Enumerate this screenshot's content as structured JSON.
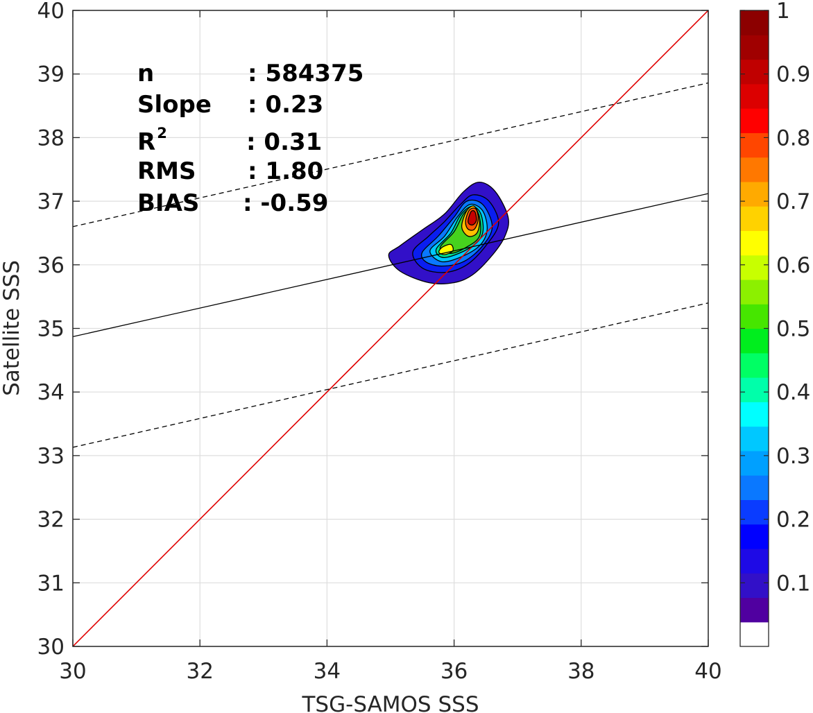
{
  "chart_data": {
    "type": "contour",
    "xlabel": "TSG-SAMOS SSS",
    "ylabel": "Satellite SSS",
    "xlim": [
      30,
      40
    ],
    "ylim": [
      30,
      40
    ],
    "xticks": [
      "30",
      "32",
      "34",
      "36",
      "38",
      "40"
    ],
    "yticks": [
      "30",
      "31",
      "32",
      "33",
      "34",
      "35",
      "36",
      "37",
      "38",
      "39",
      "40"
    ],
    "grid": true,
    "stats": {
      "n_label": "n",
      "n_value": ": 584375",
      "slope_label": "Slope",
      "slope_value": ": 0.23",
      "r2_label": "R",
      "r2_sup": "2",
      "r2_value": ": 0.31",
      "rms_label": "RMS",
      "rms_value": ": 1.80",
      "bias_label": "BIAS",
      "bias_value": ": -0.59"
    },
    "lines": [
      {
        "role": "one-to-one",
        "color": "#e00000",
        "style": "solid",
        "x": [
          30,
          40
        ],
        "y": [
          30,
          40
        ]
      },
      {
        "role": "regression",
        "color": "#000000",
        "style": "solid",
        "x": [
          30,
          40
        ],
        "y": [
          34.87,
          37.12
        ]
      },
      {
        "role": "upper-bound",
        "color": "#000000",
        "style": "dashed",
        "x": [
          30,
          40
        ],
        "y": [
          36.6,
          38.86
        ]
      },
      {
        "role": "lower-bound",
        "color": "#000000",
        "style": "dashed",
        "x": [
          30,
          40
        ],
        "y": [
          33.13,
          35.4
        ]
      }
    ],
    "density": {
      "peak_x": 36.3,
      "peak_y": 36.75,
      "secondary_peak_x": 35.88,
      "secondary_peak_y": 36.23,
      "contours": [
        {
          "level": 0.05,
          "color": "#3210c8",
          "points": [
            [
              34.97,
              36.15
            ],
            [
              35.15,
              36.3
            ],
            [
              35.5,
              36.55
            ],
            [
              35.85,
              36.8
            ],
            [
              36.15,
              37.15
            ],
            [
              36.4,
              37.3
            ],
            [
              36.65,
              37.15
            ],
            [
              36.85,
              36.75
            ],
            [
              36.8,
              36.45
            ],
            [
              36.6,
              36.15
            ],
            [
              36.3,
              35.85
            ],
            [
              36.0,
              35.72
            ],
            [
              35.6,
              35.72
            ],
            [
              35.15,
              35.9
            ]
          ]
        },
        {
          "level": 0.15,
          "color": "#0a1ef0",
          "points": [
            [
              35.35,
              36.2
            ],
            [
              35.6,
              36.45
            ],
            [
              35.85,
              36.68
            ],
            [
              36.1,
              36.95
            ],
            [
              36.3,
              37.1
            ],
            [
              36.55,
              37.0
            ],
            [
              36.7,
              36.65
            ],
            [
              36.5,
              36.3
            ],
            [
              36.2,
              36.0
            ],
            [
              35.85,
              35.88
            ],
            [
              35.5,
              35.95
            ]
          ]
        },
        {
          "level": 0.25,
          "color": "#0a78ff",
          "points": [
            [
              35.5,
              36.2
            ],
            [
              35.75,
              36.45
            ],
            [
              36.0,
              36.75
            ],
            [
              36.2,
              37.0
            ],
            [
              36.45,
              36.95
            ],
            [
              36.6,
              36.6
            ],
            [
              36.45,
              36.3
            ],
            [
              36.15,
              36.05
            ],
            [
              35.8,
              35.98
            ],
            [
              35.55,
              36.05
            ]
          ]
        },
        {
          "level": 0.35,
          "color": "#00c8ff",
          "points": [
            [
              35.62,
              36.22
            ],
            [
              35.85,
              36.45
            ],
            [
              36.05,
              36.75
            ],
            [
              36.25,
              36.95
            ],
            [
              36.45,
              36.85
            ],
            [
              36.52,
              36.55
            ],
            [
              36.4,
              36.3
            ],
            [
              36.1,
              36.12
            ],
            [
              35.8,
              36.05
            ]
          ]
        },
        {
          "level": 0.45,
          "color": "#00e090",
          "points": [
            [
              35.72,
              36.25
            ],
            [
              35.95,
              36.5
            ],
            [
              36.1,
              36.78
            ],
            [
              36.28,
              36.92
            ],
            [
              36.42,
              36.8
            ],
            [
              36.45,
              36.5
            ],
            [
              36.3,
              36.3
            ],
            [
              36.0,
              36.15
            ],
            [
              35.8,
              36.12
            ]
          ]
        },
        {
          "level": 0.55,
          "color": "#46d21e",
          "points": [
            [
              35.78,
              36.27
            ],
            [
              36.0,
              36.52
            ],
            [
              36.15,
              36.8
            ],
            [
              36.3,
              36.9
            ],
            [
              36.4,
              36.75
            ],
            [
              36.4,
              36.45
            ],
            [
              36.2,
              36.28
            ],
            [
              35.95,
              36.18
            ]
          ]
        },
        {
          "level": 0.6,
          "color": "#ffff00",
          "points": [
            [
              35.82,
              36.28
            ],
            [
              35.95,
              36.32
            ],
            [
              35.98,
              36.22
            ],
            [
              35.85,
              36.16
            ],
            [
              35.76,
              36.2
            ]
          ]
        },
        {
          "level": 0.7,
          "color": "#ffc000",
          "points": [
            [
              36.12,
              36.6
            ],
            [
              36.2,
              36.85
            ],
            [
              36.32,
              36.92
            ],
            [
              36.4,
              36.72
            ],
            [
              36.36,
              36.5
            ],
            [
              36.22,
              36.45
            ]
          ]
        },
        {
          "level": 0.8,
          "color": "#ff5a00",
          "points": [
            [
              36.18,
              36.68
            ],
            [
              36.24,
              36.86
            ],
            [
              36.34,
              36.88
            ],
            [
              36.38,
              36.72
            ],
            [
              36.32,
              36.56
            ],
            [
              36.22,
              36.56
            ]
          ]
        },
        {
          "level": 0.9,
          "color": "#c80000",
          "points": [
            [
              36.22,
              36.7
            ],
            [
              36.27,
              36.84
            ],
            [
              36.33,
              36.83
            ],
            [
              36.35,
              36.7
            ],
            [
              36.3,
              36.63
            ],
            [
              36.24,
              36.64
            ]
          ]
        }
      ]
    },
    "colorbar": {
      "ticks": [
        "0.1",
        "0.2",
        "0.3",
        "0.4",
        "0.5",
        "0.6",
        "0.7",
        "0.8",
        "0.9",
        "1"
      ],
      "tick_values": [
        0.1,
        0.2,
        0.3,
        0.4,
        0.5,
        0.6,
        0.7,
        0.8,
        0.9,
        1.0
      ],
      "range": [
        0,
        1
      ],
      "colors": [
        "#ffffff",
        "#5000a0",
        "#3210c8",
        "#1e0ae6",
        "#0000ff",
        "#0a3cff",
        "#0a78ff",
        "#00a0ff",
        "#00c8ff",
        "#00ffff",
        "#00ffaa",
        "#00ff64",
        "#00ee1e",
        "#46e600",
        "#8cf000",
        "#c8ff00",
        "#ffff00",
        "#ffd200",
        "#ffaa00",
        "#ff7800",
        "#ff4600",
        "#ff0000",
        "#dc0000",
        "#c00000",
        "#a00000",
        "#8c0000"
      ]
    }
  }
}
